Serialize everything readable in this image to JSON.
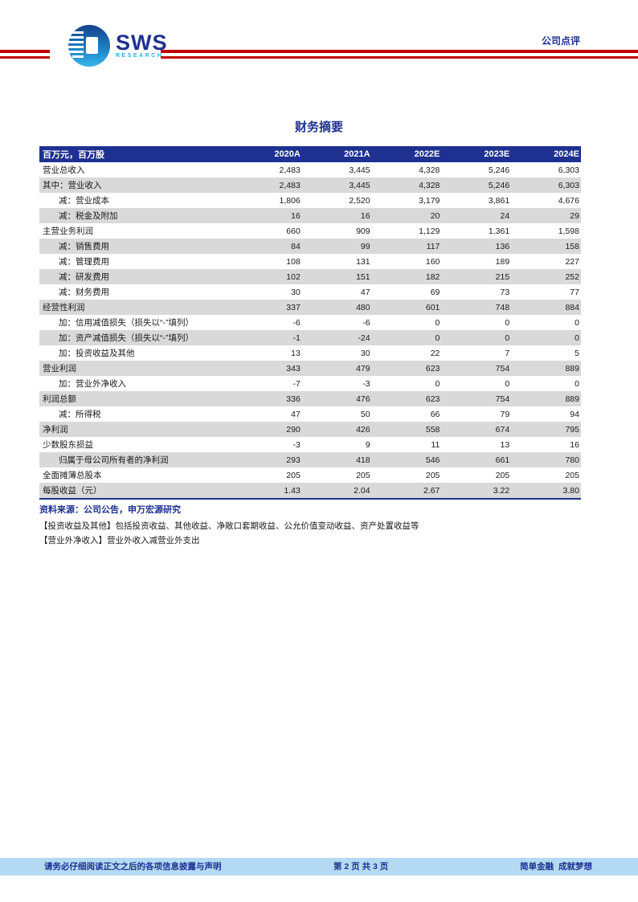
{
  "header": {
    "logo_text": "SWS",
    "logo_subtext": "RESEARCH",
    "doc_type": "公司点评"
  },
  "title": "财务摘要",
  "table": {
    "unit_header": "百万元，百万股",
    "columns": [
      "2020A",
      "2021A",
      "2022E",
      "2023E",
      "2024E"
    ],
    "rows": [
      {
        "label": "营业总收入",
        "indent": 0,
        "values": [
          "2,483",
          "3,445",
          "4,328",
          "5,246",
          "6,303"
        ]
      },
      {
        "label": "其中：营业收入",
        "indent": 0,
        "values": [
          "2,483",
          "3,445",
          "4,328",
          "5,246",
          "6,303"
        ]
      },
      {
        "label": "减：营业成本",
        "indent": 1,
        "values": [
          "1,806",
          "2,520",
          "3,179",
          "3,861",
          "4,676"
        ]
      },
      {
        "label": "减：税金及附加",
        "indent": 1,
        "values": [
          "16",
          "16",
          "20",
          "24",
          "29"
        ]
      },
      {
        "label": "主营业务利润",
        "indent": 0,
        "values": [
          "660",
          "909",
          "1,129",
          "1,361",
          "1,598"
        ]
      },
      {
        "label": "减：销售费用",
        "indent": 1,
        "values": [
          "84",
          "99",
          "117",
          "136",
          "158"
        ]
      },
      {
        "label": "减：管理费用",
        "indent": 1,
        "values": [
          "108",
          "131",
          "160",
          "189",
          "227"
        ]
      },
      {
        "label": "减：研发费用",
        "indent": 1,
        "values": [
          "102",
          "151",
          "182",
          "215",
          "252"
        ]
      },
      {
        "label": "减：财务费用",
        "indent": 1,
        "values": [
          "30",
          "47",
          "69",
          "73",
          "77"
        ]
      },
      {
        "label": "经营性利润",
        "indent": 0,
        "values": [
          "337",
          "480",
          "601",
          "748",
          "884"
        ]
      },
      {
        "label": "加：信用减值损失（损失以“-”填列）",
        "indent": 1,
        "values": [
          "-6",
          "-6",
          "0",
          "0",
          "0"
        ]
      },
      {
        "label": "加：资产减值损失（损失以“-”填列）",
        "indent": 1,
        "values": [
          "-1",
          "-24",
          "0",
          "0",
          "0"
        ]
      },
      {
        "label": "加：投资收益及其他",
        "indent": 1,
        "values": [
          "13",
          "30",
          "22",
          "7",
          "5"
        ]
      },
      {
        "label": "营业利润",
        "indent": 0,
        "values": [
          "343",
          "479",
          "623",
          "754",
          "889"
        ]
      },
      {
        "label": "加：营业外净收入",
        "indent": 1,
        "values": [
          "-7",
          "-3",
          "0",
          "0",
          "0"
        ]
      },
      {
        "label": "利润总额",
        "indent": 0,
        "values": [
          "336",
          "476",
          "623",
          "754",
          "889"
        ]
      },
      {
        "label": "减：所得税",
        "indent": 1,
        "values": [
          "47",
          "50",
          "66",
          "79",
          "94"
        ]
      },
      {
        "label": "净利润",
        "indent": 0,
        "values": [
          "290",
          "426",
          "558",
          "674",
          "795"
        ]
      },
      {
        "label": "少数股东损益",
        "indent": 0,
        "values": [
          "-3",
          "9",
          "11",
          "13",
          "16"
        ]
      },
      {
        "label": "归属于母公司所有者的净利润",
        "indent": 1,
        "values": [
          "293",
          "418",
          "546",
          "661",
          "780"
        ]
      },
      {
        "label": "全面摊薄总股本",
        "indent": 0,
        "values": [
          "205",
          "205",
          "205",
          "205",
          "205"
        ]
      },
      {
        "label": "每股收益（元）",
        "indent": 0,
        "values": [
          "1.43",
          "2.04",
          "2.67",
          "3.22",
          "3.80"
        ]
      }
    ]
  },
  "notes": {
    "source": "资料来源：公司公告，申万宏源研究",
    "note_investment": "【投资收益及其他】包括投资收益、其他收益、净敞口套期收益、公允价值变动收益、资产处置收益等",
    "note_nonoperating": "【营业外净收入】营业外收入减营业外支出"
  },
  "footer": {
    "disclaimer": "请务必仔细阅读正文之后的各项信息披露与声明",
    "page_info": "第 2 页 共 3 页",
    "slogan": "简单金融  成就梦想"
  },
  "colors": {
    "navy": "#1e3191",
    "red": "#c00000",
    "row_gray": "#d9d9d9",
    "footer_bg": "#b4daf3",
    "cyan": "#29abe2"
  }
}
